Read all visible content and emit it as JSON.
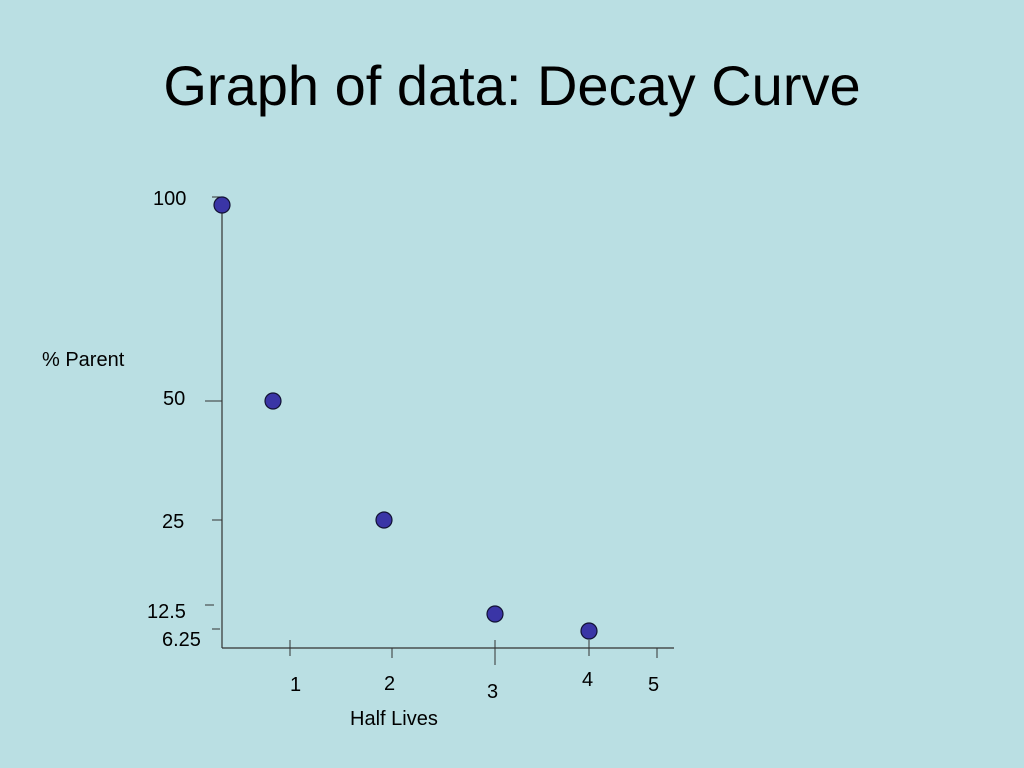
{
  "slide": {
    "title": "Graph of data: Decay Curve"
  },
  "colors": {
    "background": "#badfe3",
    "axis": "#333333",
    "point_fill": "#3a35a6",
    "point_stroke": "#111133"
  },
  "chart_data": {
    "type": "scatter",
    "title": "",
    "xlabel": "Half Lives",
    "ylabel": "% Parent",
    "x_ticks": [
      "1",
      "2",
      "3",
      "4",
      "5"
    ],
    "y_ticks": [
      "100",
      "50",
      "25",
      "12.5",
      "6.25"
    ],
    "series": [
      {
        "x": [
          0,
          0.7,
          1.9,
          3,
          4
        ],
        "y": [
          100,
          50,
          25,
          12.5,
          6.25
        ]
      }
    ],
    "grid": false,
    "legend": "none"
  }
}
